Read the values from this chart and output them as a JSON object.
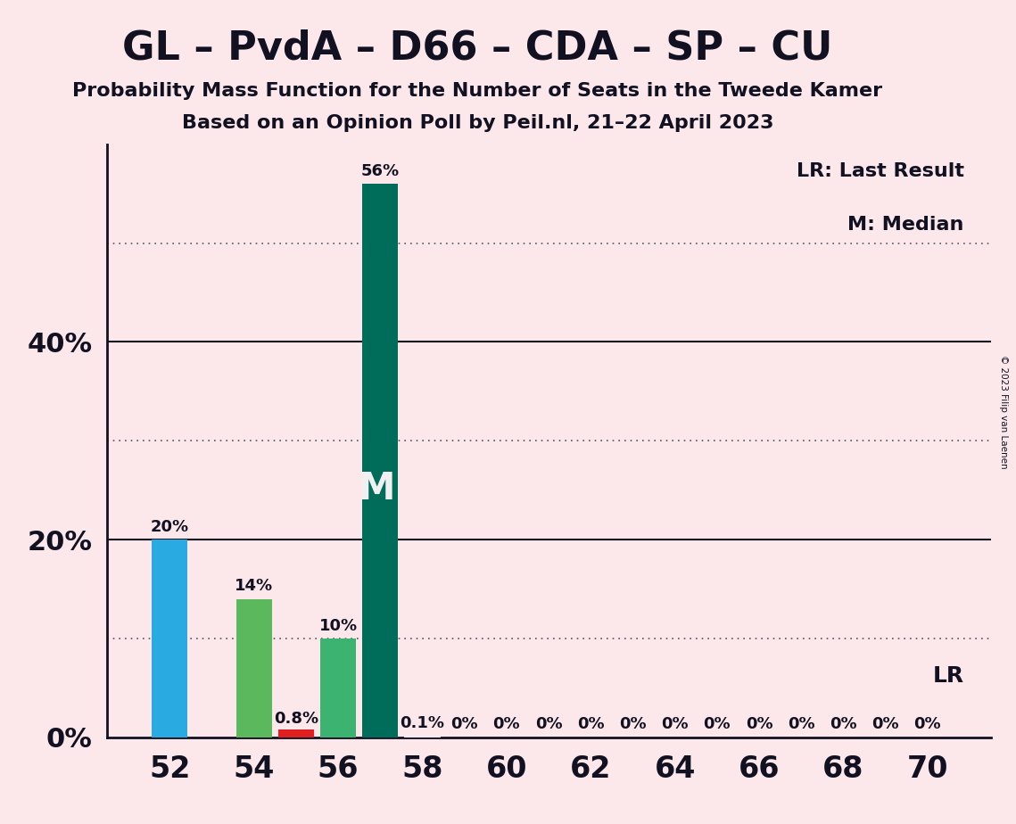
{
  "title": "GL – PvdA – D66 – CDA – SP – CU",
  "subtitle1": "Probability Mass Function for the Number of Seats in the Tweede Kamer",
  "subtitle2": "Based on an Opinion Poll by Peil.nl, 21–22 April 2023",
  "copyright": "© 2023 Filip van Laenen",
  "seats": [
    52,
    53,
    54,
    55,
    56,
    57,
    58,
    59,
    60,
    61,
    62,
    63,
    64,
    65,
    66,
    67,
    68,
    69,
    70
  ],
  "probabilities": [
    20.0,
    0.0,
    14.0,
    0.8,
    10.0,
    56.0,
    0.1,
    0.0,
    0.0,
    0.0,
    0.0,
    0.0,
    0.0,
    0.0,
    0.0,
    0.0,
    0.0,
    0.0,
    0.0
  ],
  "bar_colors": [
    "#29abe2",
    "#fce8ea",
    "#5cb85c",
    "#e02020",
    "#3cb371",
    "#006d5b",
    "#fce8ea",
    "#fce8ea",
    "#fce8ea",
    "#fce8ea",
    "#fce8ea",
    "#fce8ea",
    "#fce8ea",
    "#fce8ea",
    "#fce8ea",
    "#fce8ea",
    "#fce8ea",
    "#fce8ea",
    "#fce8ea"
  ],
  "bar_labels": [
    "20%",
    "",
    "14%",
    "0.8%",
    "10%",
    "56%",
    "0.1%",
    "0%",
    "0%",
    "0%",
    "0%",
    "0%",
    "0%",
    "0%",
    "0%",
    "0%",
    "0%",
    "0%",
    "0%"
  ],
  "show_zero_label": [
    true,
    false,
    true,
    true,
    true,
    true,
    true,
    true,
    true,
    true,
    true,
    true,
    true,
    true,
    true,
    true,
    true,
    true,
    true
  ],
  "label_at_bottom": [
    false,
    false,
    false,
    true,
    false,
    false,
    false,
    false,
    false,
    false,
    false,
    false,
    false,
    false,
    false,
    false,
    false,
    false,
    false
  ],
  "median_seat": 57,
  "lr_seat": 57,
  "ytick_labels": [
    "0%",
    "20%",
    "40%"
  ],
  "ytick_values": [
    0,
    20,
    40
  ],
  "dotted_lines": [
    10,
    30,
    50
  ],
  "solid_lines": [
    20,
    40
  ],
  "xtick_positions": [
    52,
    54,
    56,
    58,
    60,
    62,
    64,
    66,
    68,
    70
  ],
  "xlim": [
    50.5,
    71.5
  ],
  "ylim": [
    0,
    60
  ],
  "background_color": "#fce8ea",
  "bar_width": 0.85,
  "legend_lr": "LR: Last Result",
  "legend_m": "M: Median",
  "lr_label": "LR",
  "m_label": "M",
  "solid_line_color": "#111122",
  "dotted_line_color": "#555566",
  "text_color": "#111122",
  "m_text_color": "#f0f0f0",
  "title_fontsize": 32,
  "subtitle_fontsize": 16,
  "ylabel_fontsize": 22,
  "xlabel_fontsize": 24,
  "bar_label_fontsize": 13,
  "legend_fontsize": 16,
  "lr_fontsize": 18,
  "m_fontsize": 30
}
